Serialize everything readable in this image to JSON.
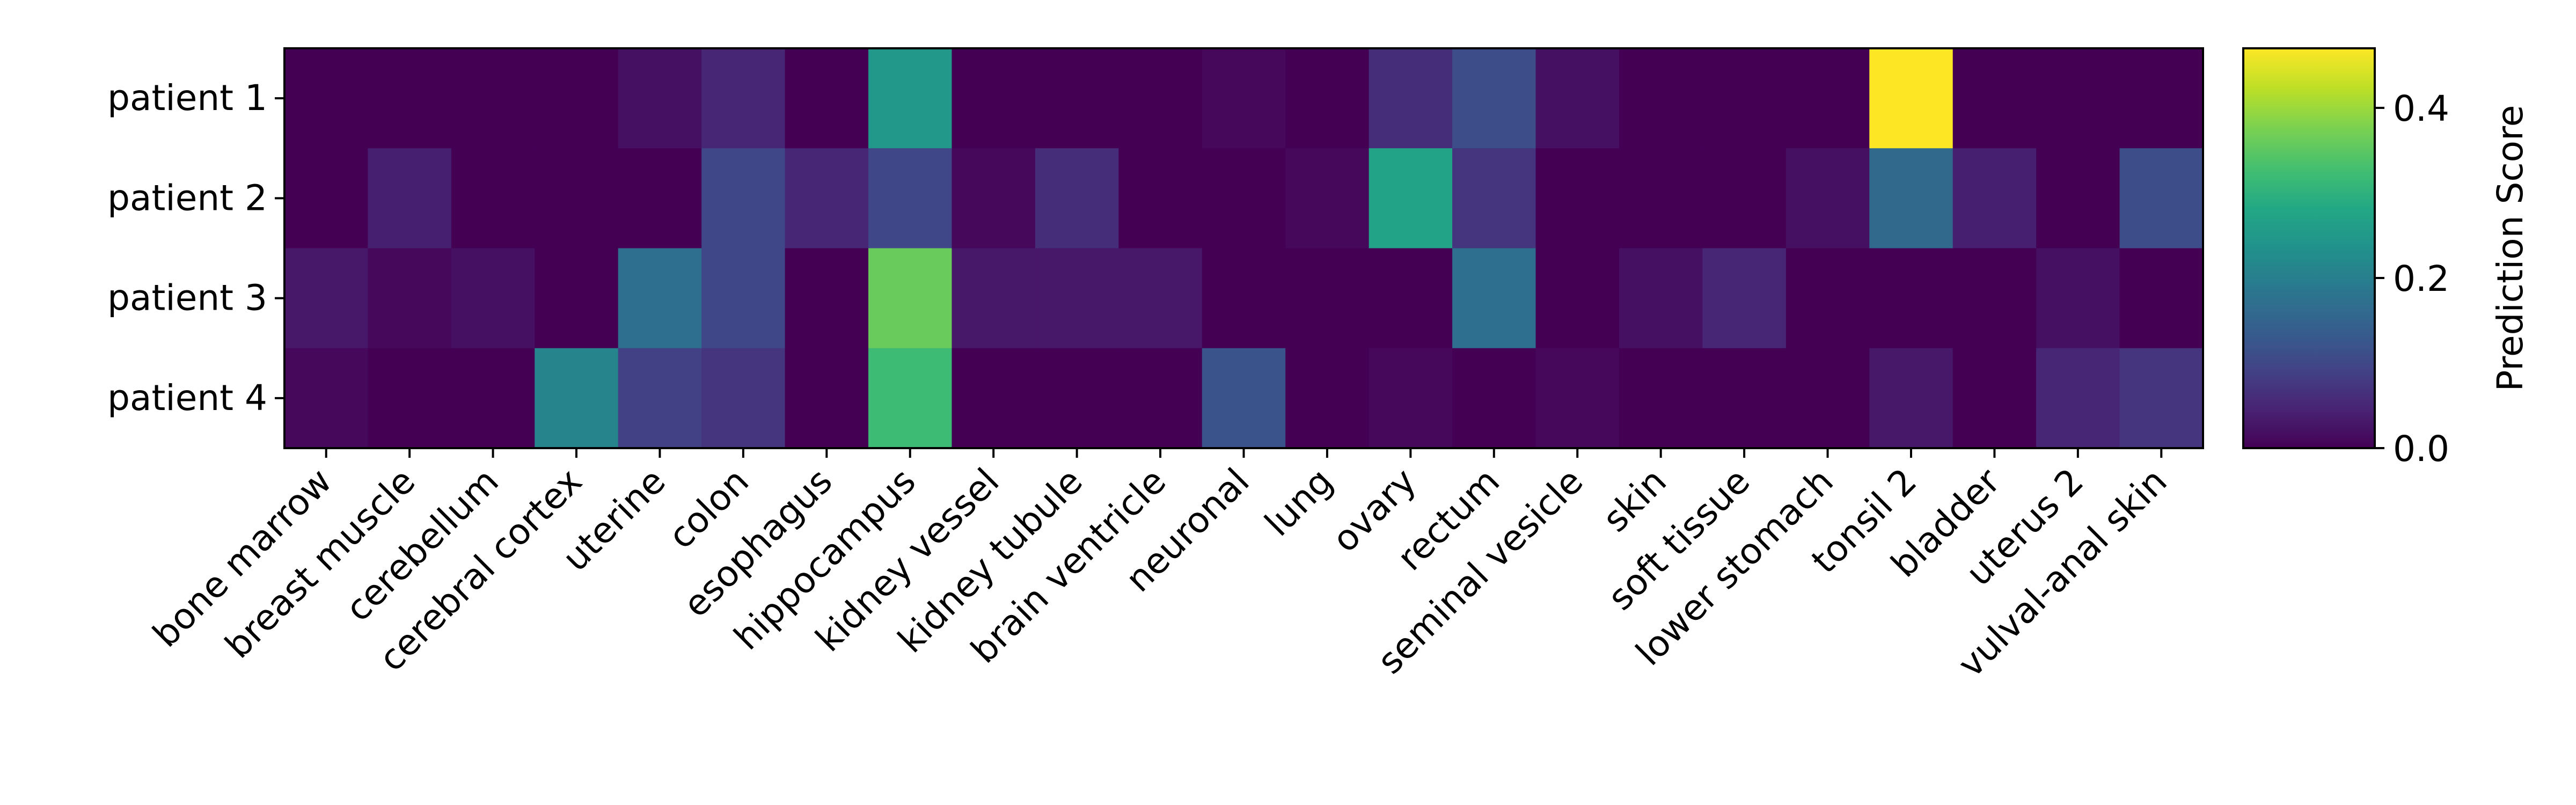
{
  "chart_data": {
    "type": "heatmap",
    "rows": [
      "patient 1",
      "patient 2",
      "patient 3",
      "patient 4"
    ],
    "columns": [
      "bone marrow",
      "breast muscle",
      "cerebellum",
      "cerebral cortex",
      "uterine",
      "colon",
      "esophagus",
      "hippocampus",
      "kidney vessel",
      "kidney tubule",
      "brain ventricle",
      "neuronal",
      "lung",
      "ovary",
      "rectum",
      "seminal vesicle",
      "skin",
      "soft tissue",
      "lower stomach",
      "tonsil 2",
      "bladder",
      "uterus 2",
      "vulval-anal skin"
    ],
    "values": [
      [
        0.0,
        0.0,
        0.0,
        0.0,
        0.02,
        0.05,
        0.0,
        0.25,
        0.0,
        0.0,
        0.0,
        0.01,
        0.0,
        0.06,
        0.11,
        0.02,
        0.0,
        0.0,
        0.0,
        0.47,
        0.0,
        0.0,
        0.0
      ],
      [
        0.0,
        0.04,
        0.0,
        0.0,
        0.0,
        0.1,
        0.05,
        0.1,
        0.01,
        0.06,
        0.0,
        0.0,
        0.01,
        0.27,
        0.07,
        0.0,
        0.0,
        0.0,
        0.02,
        0.16,
        0.04,
        0.0,
        0.11
      ],
      [
        0.03,
        0.01,
        0.02,
        0.0,
        0.17,
        0.1,
        0.0,
        0.36,
        0.03,
        0.03,
        0.03,
        0.0,
        0.0,
        0.0,
        0.17,
        0.0,
        0.02,
        0.05,
        0.0,
        0.0,
        0.0,
        0.02,
        0.0
      ],
      [
        0.01,
        0.0,
        0.0,
        0.21,
        0.09,
        0.07,
        0.0,
        0.32,
        0.0,
        0.0,
        0.0,
        0.12,
        0.0,
        0.01,
        0.0,
        0.01,
        0.0,
        0.0,
        0.0,
        0.03,
        0.0,
        0.05,
        0.07
      ]
    ],
    "colormap": "viridis",
    "vmin": 0.0,
    "vmax": 0.47,
    "colorbar": {
      "label": "Prediction Score",
      "ticks": [
        0.0,
        0.2,
        0.4
      ],
      "tick_labels": [
        "0.0",
        "0.2",
        "0.4"
      ]
    },
    "grid": false
  }
}
